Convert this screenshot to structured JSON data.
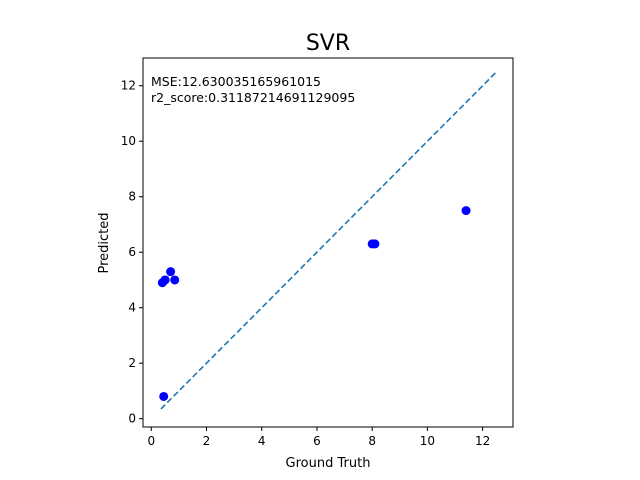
{
  "chart_data": {
    "type": "scatter",
    "title": "SVR",
    "xlabel": "Ground Truth",
    "ylabel": "Predicted",
    "xlim": [
      -0.3,
      13.1
    ],
    "ylim": [
      -0.3,
      13.0
    ],
    "xticks": [
      0,
      2,
      4,
      6,
      8,
      10,
      12
    ],
    "yticks": [
      0,
      2,
      4,
      6,
      8,
      10,
      12
    ],
    "grid": false,
    "annotations": [
      "MSE:12.630035165961015",
      "r2_score:0.31187214691129095"
    ],
    "points": {
      "color": "#0000ff",
      "x": [
        0.4,
        0.5,
        0.5,
        0.7,
        0.85,
        0.45,
        8.0,
        8.1,
        11.4
      ],
      "y": [
        4.9,
        5.0,
        5.0,
        5.3,
        5.0,
        0.8,
        6.3,
        6.3,
        7.5
      ]
    },
    "reference_line": {
      "style": "dashed",
      "color": "#1f77b4",
      "x": [
        0.35,
        12.5
      ],
      "y": [
        0.35,
        12.5
      ]
    }
  }
}
